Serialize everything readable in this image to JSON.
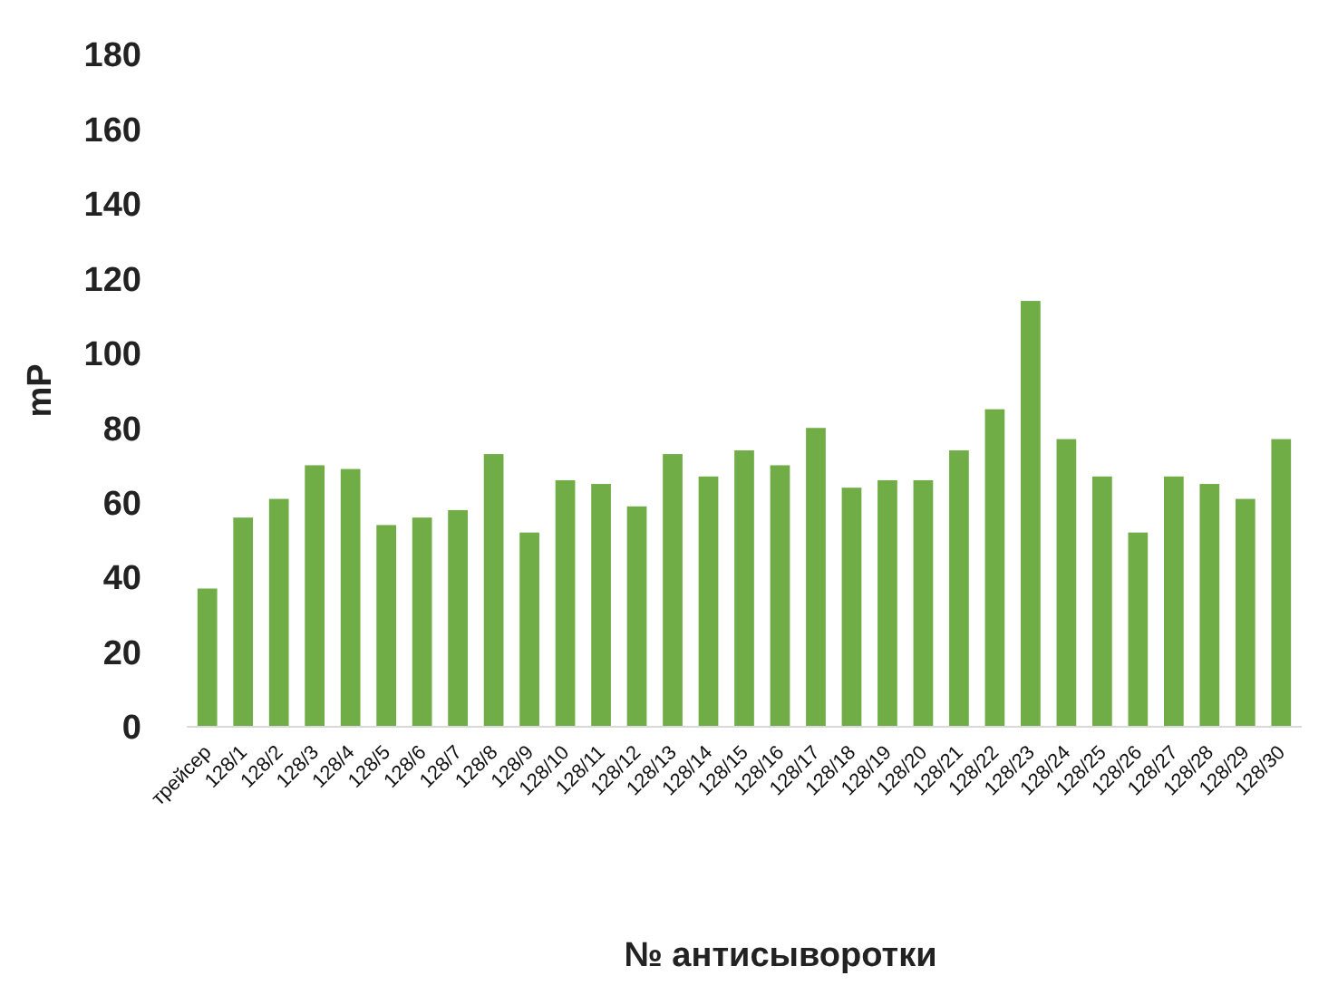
{
  "chart_data": {
    "type": "bar",
    "xlabel": "№ антисыворотки",
    "ylabel": "mP",
    "categories": [
      "трейсер",
      "128/1",
      "128/2",
      "128/3",
      "128/4",
      "128/5",
      "128/6",
      "128/7",
      "128/8",
      "128/9",
      "128/10",
      "128/11",
      "128/12",
      "128/13",
      "128/14",
      "128/15",
      "128/16",
      "128/17",
      "128/18",
      "128/19",
      "128/20",
      "128/21",
      "128/22",
      "128/23",
      "128/24",
      "128/25",
      "128/26",
      "128/27",
      "128/28",
      "128/29",
      "128/30"
    ],
    "values": [
      37,
      56,
      61,
      70,
      69,
      54,
      56,
      58,
      73,
      52,
      66,
      65,
      59,
      73,
      67,
      74,
      70,
      80,
      64,
      66,
      66,
      74,
      85,
      114,
      77,
      67,
      52,
      67,
      65,
      61,
      77
    ],
    "color": "#70ad47",
    "ylim": [
      0,
      180
    ],
    "yticks": [
      0,
      20,
      40,
      60,
      80,
      100,
      120,
      140,
      160,
      180
    ],
    "grid": false
  }
}
